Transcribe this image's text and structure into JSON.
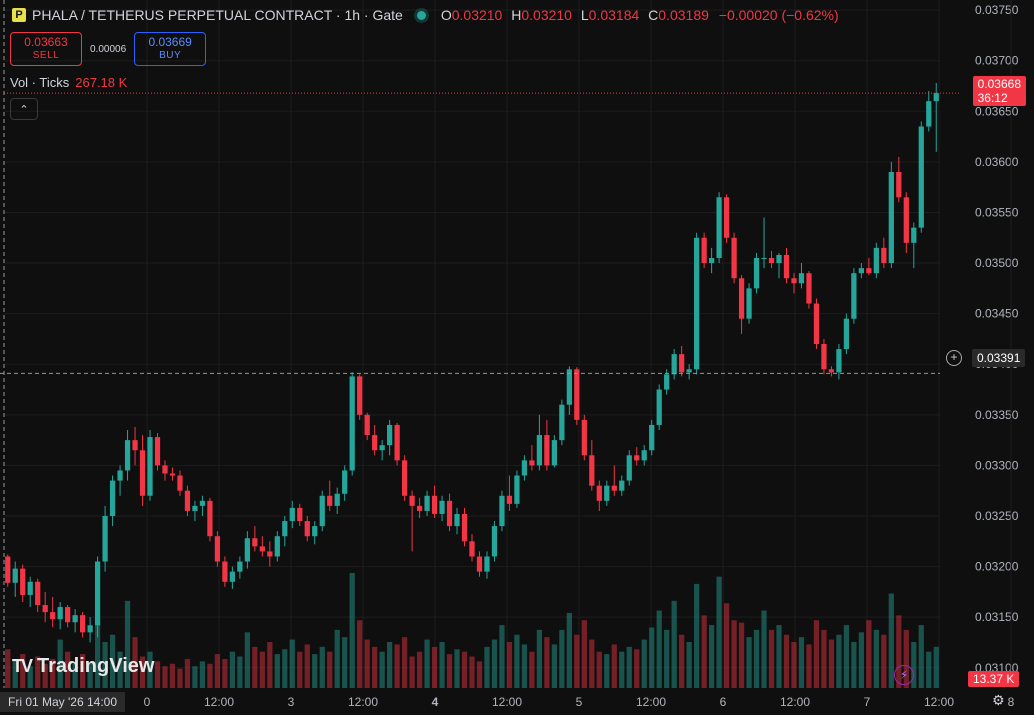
{
  "header": {
    "logo_letter": "P",
    "title": "PHALA / TETHERUS PERPETUAL CONTRACT · 1h · Gate",
    "ohlc": {
      "o_label": "O",
      "o": "0.03210",
      "h_label": "H",
      "h": "0.03210",
      "l_label": "L",
      "l": "0.03184",
      "c_label": "C",
      "c": "0.03189",
      "change": "−0.00020 (−0.62%)"
    }
  },
  "trade": {
    "sell_price": "0.03663",
    "sell_label": "SELL",
    "spread": "0.00006",
    "buy_price": "0.03669",
    "buy_label": "BUY"
  },
  "volume_legend": {
    "label": "Vol · Ticks",
    "value": "267.18 K"
  },
  "collapse_icon": "chevron-up-icon",
  "price_axis": {
    "labels": [
      "0.03750",
      "0.03700",
      "0.03650",
      "0.03600",
      "0.03550",
      "0.03500",
      "0.03450",
      "0.03400",
      "0.03350",
      "0.03300",
      "0.03250",
      "0.03200",
      "0.03150",
      "0.03100"
    ],
    "current_price": "0.03668",
    "countdown": "36:12",
    "crosshair_price": "0.03391",
    "volume_value": "13.37 K"
  },
  "time_axis": {
    "labels": [
      "0",
      "12:00",
      "3",
      "12:00",
      "4",
      "12:00",
      "5",
      "12:00",
      "6",
      "12:00",
      "7",
      "12:00",
      "8"
    ],
    "crosshair_label": "Fri 01 May '26  14:00"
  },
  "branding": {
    "name": "TradingView"
  },
  "colors": {
    "up": "#26a69a",
    "down": "#f23645",
    "background": "#0f0f0f",
    "grid": "#1c1c1c"
  },
  "chart_data": {
    "type": "candlestick",
    "interval": "1h",
    "y_range": [
      0.0308,
      0.0376
    ],
    "series": [
      {
        "name": "price",
        "candles": [
          [
            0.0321,
            0.03212,
            0.0318,
            0.03184
          ],
          [
            0.03184,
            0.03205,
            0.0317,
            0.03198
          ],
          [
            0.03198,
            0.03202,
            0.03165,
            0.03172
          ],
          [
            0.03172,
            0.0319,
            0.0316,
            0.03185
          ],
          [
            0.03185,
            0.03188,
            0.03155,
            0.03162
          ],
          [
            0.03162,
            0.03175,
            0.03145,
            0.03155
          ],
          [
            0.03155,
            0.0317,
            0.0314,
            0.03148
          ],
          [
            0.03148,
            0.03165,
            0.03138,
            0.0316
          ],
          [
            0.0316,
            0.03162,
            0.0314,
            0.03145
          ],
          [
            0.03145,
            0.03158,
            0.03135,
            0.03152
          ],
          [
            0.03152,
            0.03155,
            0.0313,
            0.03135
          ],
          [
            0.03135,
            0.0315,
            0.03125,
            0.03142
          ],
          [
            0.03142,
            0.0321,
            0.0313,
            0.03205
          ],
          [
            0.03205,
            0.0326,
            0.03195,
            0.0325
          ],
          [
            0.0325,
            0.0329,
            0.0324,
            0.03285
          ],
          [
            0.03285,
            0.033,
            0.0327,
            0.03295
          ],
          [
            0.03295,
            0.03335,
            0.03285,
            0.03325
          ],
          [
            0.03325,
            0.03338,
            0.033,
            0.03315
          ],
          [
            0.03315,
            0.0333,
            0.0326,
            0.0327
          ],
          [
            0.0327,
            0.03335,
            0.03265,
            0.03328
          ],
          [
            0.03328,
            0.03332,
            0.03295,
            0.033
          ],
          [
            0.033,
            0.03305,
            0.03285,
            0.03292
          ],
          [
            0.03292,
            0.03298,
            0.03285,
            0.0329
          ],
          [
            0.0329,
            0.03295,
            0.0327,
            0.03275
          ],
          [
            0.03275,
            0.0328,
            0.0325,
            0.03255
          ],
          [
            0.03255,
            0.03265,
            0.03245,
            0.0326
          ],
          [
            0.0326,
            0.0327,
            0.0325,
            0.03265
          ],
          [
            0.03265,
            0.03268,
            0.03225,
            0.0323
          ],
          [
            0.0323,
            0.03235,
            0.032,
            0.03205
          ],
          [
            0.03205,
            0.0321,
            0.0318,
            0.03185
          ],
          [
            0.03185,
            0.032,
            0.03178,
            0.03195
          ],
          [
            0.03195,
            0.0321,
            0.03188,
            0.03205
          ],
          [
            0.03205,
            0.03235,
            0.03198,
            0.03228
          ],
          [
            0.03228,
            0.0324,
            0.03215,
            0.0322
          ],
          [
            0.0322,
            0.0323,
            0.0321,
            0.03215
          ],
          [
            0.03215,
            0.03225,
            0.032,
            0.0321
          ],
          [
            0.0321,
            0.03235,
            0.03205,
            0.0323
          ],
          [
            0.0323,
            0.0325,
            0.0322,
            0.03245
          ],
          [
            0.03245,
            0.03265,
            0.03238,
            0.03258
          ],
          [
            0.03258,
            0.03262,
            0.0324,
            0.03245
          ],
          [
            0.03245,
            0.0325,
            0.03225,
            0.0323
          ],
          [
            0.0323,
            0.03245,
            0.03222,
            0.0324
          ],
          [
            0.0324,
            0.03275,
            0.03235,
            0.0327
          ],
          [
            0.0327,
            0.03285,
            0.03255,
            0.0326
          ],
          [
            0.0326,
            0.03278,
            0.03252,
            0.03272
          ],
          [
            0.03272,
            0.033,
            0.03265,
            0.03295
          ],
          [
            0.03295,
            0.03392,
            0.0329,
            0.03388
          ],
          [
            0.03388,
            0.0339,
            0.03345,
            0.0335
          ],
          [
            0.0335,
            0.03352,
            0.03325,
            0.0333
          ],
          [
            0.0333,
            0.0334,
            0.0331,
            0.03315
          ],
          [
            0.03315,
            0.03325,
            0.03305,
            0.0332
          ],
          [
            0.0332,
            0.03345,
            0.0331,
            0.0334
          ],
          [
            0.0334,
            0.03342,
            0.033,
            0.03305
          ],
          [
            0.03305,
            0.0331,
            0.03265,
            0.0327
          ],
          [
            0.0327,
            0.03275,
            0.03215,
            0.0326
          ],
          [
            0.0326,
            0.03268,
            0.03248,
            0.03255
          ],
          [
            0.03255,
            0.03275,
            0.0325,
            0.0327
          ],
          [
            0.0327,
            0.0328,
            0.03248,
            0.03252
          ],
          [
            0.03252,
            0.0327,
            0.03245,
            0.03265
          ],
          [
            0.03265,
            0.03272,
            0.03235,
            0.0324
          ],
          [
            0.0324,
            0.03258,
            0.03232,
            0.03252
          ],
          [
            0.03252,
            0.03258,
            0.0322,
            0.03225
          ],
          [
            0.03225,
            0.03232,
            0.03205,
            0.0321
          ],
          [
            0.0321,
            0.03215,
            0.0319,
            0.03195
          ],
          [
            0.03195,
            0.03215,
            0.03188,
            0.0321
          ],
          [
            0.0321,
            0.03245,
            0.03205,
            0.0324
          ],
          [
            0.0324,
            0.03275,
            0.03235,
            0.0327
          ],
          [
            0.0327,
            0.0329,
            0.03255,
            0.03262
          ],
          [
            0.03262,
            0.03295,
            0.03258,
            0.0329
          ],
          [
            0.0329,
            0.0331,
            0.03285,
            0.03305
          ],
          [
            0.03305,
            0.0332,
            0.03295,
            0.033
          ],
          [
            0.033,
            0.0335,
            0.03295,
            0.0333
          ],
          [
            0.0333,
            0.03345,
            0.03295,
            0.033
          ],
          [
            0.033,
            0.0333,
            0.03298,
            0.03325
          ],
          [
            0.03325,
            0.03365,
            0.0332,
            0.0336
          ],
          [
            0.0336,
            0.03398,
            0.0335,
            0.03395
          ],
          [
            0.03395,
            0.03397,
            0.0334,
            0.03345
          ],
          [
            0.03345,
            0.0335,
            0.03305,
            0.0331
          ],
          [
            0.0331,
            0.03325,
            0.03275,
            0.0328
          ],
          [
            0.0328,
            0.03285,
            0.03255,
            0.03265
          ],
          [
            0.03265,
            0.03285,
            0.0326,
            0.0328
          ],
          [
            0.0328,
            0.033,
            0.0327,
            0.03275
          ],
          [
            0.03275,
            0.0329,
            0.0327,
            0.03285
          ],
          [
            0.03285,
            0.03315,
            0.0328,
            0.0331
          ],
          [
            0.0331,
            0.03318,
            0.033,
            0.03305
          ],
          [
            0.03305,
            0.0332,
            0.033,
            0.03315
          ],
          [
            0.03315,
            0.03345,
            0.0331,
            0.0334
          ],
          [
            0.0334,
            0.0338,
            0.03335,
            0.03375
          ],
          [
            0.03375,
            0.03395,
            0.0337,
            0.0339
          ],
          [
            0.0339,
            0.03415,
            0.03385,
            0.0341
          ],
          [
            0.0341,
            0.03418,
            0.03388,
            0.03392
          ],
          [
            0.03392,
            0.034,
            0.03385,
            0.03395
          ],
          [
            0.03395,
            0.0353,
            0.0339,
            0.03525
          ],
          [
            0.03525,
            0.0353,
            0.03495,
            0.035
          ],
          [
            0.035,
            0.03515,
            0.0349,
            0.03505
          ],
          [
            0.03505,
            0.0357,
            0.035,
            0.03565
          ],
          [
            0.03565,
            0.03568,
            0.0352,
            0.03525
          ],
          [
            0.03525,
            0.0353,
            0.0348,
            0.03485
          ],
          [
            0.03485,
            0.03488,
            0.0343,
            0.03445
          ],
          [
            0.03445,
            0.0348,
            0.0344,
            0.03475
          ],
          [
            0.03475,
            0.0351,
            0.0347,
            0.03505
          ],
          [
            0.03505,
            0.03545,
            0.03495,
            0.03505
          ],
          [
            0.03505,
            0.03512,
            0.03495,
            0.035
          ],
          [
            0.035,
            0.0351,
            0.03485,
            0.03508
          ],
          [
            0.03508,
            0.03515,
            0.0348,
            0.03485
          ],
          [
            0.03485,
            0.0349,
            0.0347,
            0.0348
          ],
          [
            0.0348,
            0.035,
            0.03475,
            0.0349
          ],
          [
            0.0349,
            0.03492,
            0.03455,
            0.0346
          ],
          [
            0.0346,
            0.03465,
            0.03415,
            0.0342
          ],
          [
            0.0342,
            0.03425,
            0.0339,
            0.03395
          ],
          [
            0.03395,
            0.03398,
            0.03388,
            0.03392
          ],
          [
            0.03392,
            0.0342,
            0.03385,
            0.03415
          ],
          [
            0.03415,
            0.0345,
            0.0341,
            0.03445
          ],
          [
            0.03445,
            0.03495,
            0.0344,
            0.0349
          ],
          [
            0.0349,
            0.035,
            0.03485,
            0.03495
          ],
          [
            0.03495,
            0.03505,
            0.03488,
            0.0349
          ],
          [
            0.0349,
            0.0352,
            0.03485,
            0.03515
          ],
          [
            0.03515,
            0.03525,
            0.03495,
            0.035
          ],
          [
            0.035,
            0.036,
            0.03495,
            0.0359
          ],
          [
            0.0359,
            0.03605,
            0.0356,
            0.03565
          ],
          [
            0.03565,
            0.0357,
            0.0351,
            0.0352
          ],
          [
            0.0352,
            0.0354,
            0.03495,
            0.03535
          ],
          [
            0.03535,
            0.0364,
            0.0353,
            0.03635
          ],
          [
            0.03635,
            0.0367,
            0.0363,
            0.0366
          ],
          [
            0.0366,
            0.03678,
            0.0361,
            0.03668
          ]
        ]
      },
      {
        "name": "volume",
        "values": [
          32,
          22,
          28,
          18,
          26,
          20,
          24,
          40,
          30,
          22,
          28,
          20,
          55,
          38,
          44,
          30,
          72,
          42,
          26,
          30,
          22,
          18,
          20,
          16,
          24,
          18,
          22,
          20,
          28,
          24,
          30,
          26,
          46,
          34,
          30,
          38,
          28,
          32,
          40,
          30,
          36,
          28,
          34,
          30,
          48,
          42,
          95,
          56,
          40,
          34,
          30,
          38,
          36,
          42,
          26,
          30,
          40,
          34,
          38,
          28,
          32,
          30,
          26,
          22,
          34,
          40,
          52,
          38,
          44,
          36,
          30,
          48,
          42,
          36,
          48,
          62,
          44,
          56,
          40,
          30,
          28,
          36,
          30,
          34,
          32,
          40,
          50,
          64,
          48,
          72,
          44,
          38,
          86,
          60,
          52,
          92,
          70,
          56,
          54,
          42,
          48,
          64,
          48,
          52,
          44,
          38,
          42,
          36,
          56,
          48,
          40,
          44,
          52,
          38,
          46,
          56,
          48,
          44,
          78,
          60,
          48,
          38,
          52,
          30,
          34
        ]
      }
    ]
  }
}
